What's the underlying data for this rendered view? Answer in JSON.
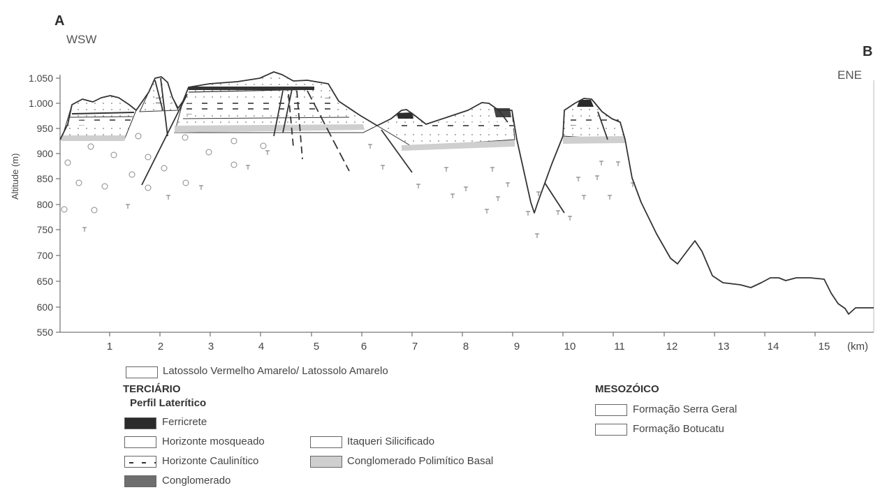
{
  "profile": {
    "start_label": "A",
    "end_label": "B",
    "start_direction": "WSW",
    "end_direction": "ENE",
    "y_axis_label": "Altitude (m)",
    "x_unit_label": "(km)",
    "y_ticks": [
      "1.050",
      "1.000",
      "950",
      "900",
      "850",
      "800",
      "750",
      "700",
      "650",
      "600",
      "550"
    ],
    "x_ticks": [
      "1",
      "2",
      "3",
      "4",
      "5",
      "6",
      "7",
      "8",
      "9",
      "10",
      "11",
      "12",
      "13",
      "14",
      "15"
    ],
    "y_range_m": [
      550,
      1075
    ],
    "x_range_km": [
      0,
      16.3
    ]
  },
  "legend": {
    "soil": "Latossolo Vermelho Amarelo/ Latossolo Amarelo",
    "tertiary_heading": "TERCIÁRIO",
    "lateritic_heading": "Perfil Laterítico",
    "ferricrete": "Ferricrete",
    "mottled": "Horizonte mosqueado",
    "kaolinitic": "Horizonte Caulinítico",
    "conglomerate": "Conglomerado",
    "itaqueri": "Itaqueri Silicificado",
    "basal": "Conglomerado Polimítico Basal",
    "mesozoic_heading": "MESOZÓICO",
    "serra_geral": "Formação Serra Geral",
    "botucatu": "Formação Botucatu"
  },
  "colors": {
    "ferricrete": "#2b2b2b",
    "conglomerate": "#6e6e6e",
    "basal": "#cfcfcf",
    "line": "#333333"
  }
}
